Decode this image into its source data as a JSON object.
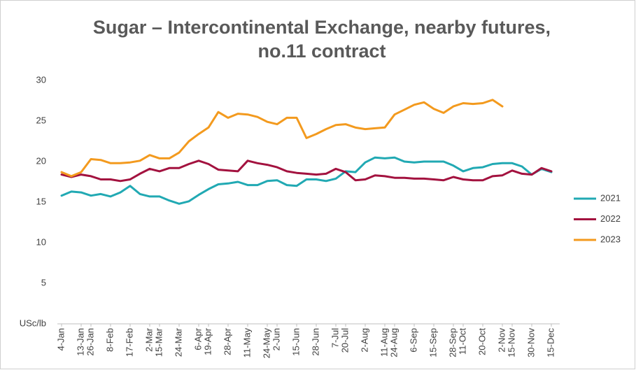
{
  "chart_data": {
    "type": "line",
    "title": "Sugar – Intercontinental Exchange, nearby futures, no.11 contract",
    "categories": [
      "4-Jan",
      null,
      "13-Jan",
      "26-Jan",
      null,
      "8-Feb",
      null,
      "17-Feb",
      null,
      "2-Mar",
      "15-Mar",
      null,
      "24-Mar",
      null,
      "6-Apr",
      "19-Apr",
      null,
      "28-Apr",
      null,
      "11-May",
      null,
      "24-May",
      "2-Jun",
      null,
      "15-Jun",
      null,
      "28-Jun",
      null,
      "7-Jul",
      "20-Jul",
      null,
      "2-Aug",
      null,
      "11-Aug",
      "24-Aug",
      null,
      "6-Sep",
      null,
      "15-Sep",
      null,
      "28-Sep",
      "11-Oct",
      null,
      "20-Oct",
      null,
      "2-Nov",
      "15-Nov",
      null,
      "30-Nov",
      null,
      "15-Dec"
    ],
    "series": [
      {
        "name": "2021",
        "color": "#21a9b3",
        "values": [
          15.8,
          16.3,
          16.2,
          15.8,
          16.0,
          15.7,
          16.2,
          17.0,
          16.0,
          15.7,
          15.7,
          15.2,
          14.8,
          15.1,
          15.9,
          16.6,
          17.2,
          17.3,
          17.5,
          17.1,
          17.1,
          17.6,
          17.7,
          17.1,
          17.0,
          17.8,
          17.8,
          17.6,
          17.9,
          18.8,
          18.7,
          19.9,
          20.5,
          20.4,
          20.5,
          20.0,
          19.9,
          20.0,
          20.0,
          20.0,
          19.5,
          18.8,
          19.2,
          19.3,
          19.7,
          19.8,
          19.8,
          19.4,
          18.4,
          19.1,
          18.7
        ]
      },
      {
        "name": "2022",
        "color": "#a3123f",
        "values": [
          18.4,
          18.1,
          18.4,
          18.2,
          17.8,
          17.8,
          17.6,
          17.8,
          18.5,
          19.1,
          18.8,
          19.2,
          19.2,
          19.7,
          20.1,
          19.7,
          19.0,
          18.9,
          18.8,
          20.1,
          19.8,
          19.6,
          19.3,
          18.8,
          18.6,
          18.5,
          18.4,
          18.5,
          19.1,
          18.7,
          17.7,
          17.8,
          18.3,
          18.2,
          18.0,
          18.0,
          17.9,
          17.9,
          17.8,
          17.7,
          18.1,
          17.8,
          17.7,
          17.7,
          18.2,
          18.3,
          18.9,
          18.5,
          18.4,
          19.2,
          18.8
        ]
      },
      {
        "name": "2023",
        "color": "#f39a1e",
        "values": [
          18.7,
          18.2,
          18.7,
          20.3,
          20.2,
          19.8,
          19.8,
          19.9,
          20.1,
          20.8,
          20.4,
          20.4,
          21.1,
          22.5,
          23.4,
          24.2,
          26.1,
          25.4,
          25.9,
          25.8,
          25.5,
          24.9,
          24.6,
          25.4,
          25.4,
          22.9,
          23.4,
          24.0,
          24.5,
          24.6,
          24.2,
          24.0,
          24.1,
          24.2,
          25.8,
          26.4,
          27.0,
          27.3,
          26.5,
          26.0,
          26.8,
          27.2,
          27.1,
          27.2,
          27.6,
          26.8,
          null,
          null,
          null,
          null,
          null
        ]
      }
    ],
    "ylim": [
      0,
      30
    ],
    "yticks": [
      {
        "value": 0,
        "label": "USc/lb"
      },
      5,
      10,
      15,
      20,
      25,
      30
    ],
    "grid": false,
    "legend": "right"
  }
}
